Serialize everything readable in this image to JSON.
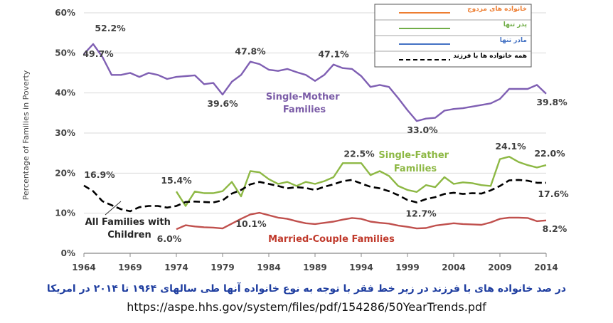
{
  "chart_data": {
    "type": "line",
    "ylabel": "Percentage of Families in Poverty",
    "xlim": [
      1964,
      2014
    ],
    "ylim": [
      0,
      60
    ],
    "x_ticks": [
      "1964",
      "1969",
      "1974",
      "1979",
      "1984",
      "1989",
      "1994",
      "1999",
      "2004",
      "2009",
      "2014"
    ],
    "y_ticks": [
      "0%",
      "10%",
      "20%",
      "30%",
      "40%",
      "50%",
      "60%"
    ],
    "grid": "horizontal",
    "legend_position": "top-right",
    "legend": [
      {
        "label": "خانواده های مزدوج",
        "color": "#ed7d31",
        "dash": "none"
      },
      {
        "label": "پدر تنها",
        "color": "#70ad47",
        "dash": "none"
      },
      {
        "label": "مادر تنها",
        "color": "#4472c4",
        "dash": "none"
      },
      {
        "label": "همه خانواده ها با فرزند",
        "color": "#000000",
        "dash": "6,4"
      }
    ],
    "series": [
      {
        "name": "Single-Mother Families",
        "color": "#7f5fb3",
        "dash": "none",
        "width": 2.4,
        "points": [
          [
            1964,
            49.7
          ],
          [
            1965,
            52.2
          ],
          [
            1966,
            49
          ],
          [
            1967,
            44.5
          ],
          [
            1968,
            44.5
          ],
          [
            1969,
            45
          ],
          [
            1970,
            44
          ],
          [
            1971,
            45
          ],
          [
            1972,
            44.5
          ],
          [
            1973,
            43.5
          ],
          [
            1974,
            44
          ],
          [
            1975,
            44.2
          ],
          [
            1976,
            44.4
          ],
          [
            1977,
            42.2
          ],
          [
            1978,
            42.5
          ],
          [
            1979,
            39.6
          ],
          [
            1980,
            42.8
          ],
          [
            1981,
            44.5
          ],
          [
            1982,
            47.8
          ],
          [
            1983,
            47.2
          ],
          [
            1984,
            45.8
          ],
          [
            1985,
            45.5
          ],
          [
            1986,
            46
          ],
          [
            1987,
            45.2
          ],
          [
            1988,
            44.5
          ],
          [
            1989,
            43
          ],
          [
            1990,
            44.5
          ],
          [
            1991,
            47.1
          ],
          [
            1992,
            46.2
          ],
          [
            1993,
            46
          ],
          [
            1994,
            44.2
          ],
          [
            1995,
            41.5
          ],
          [
            1996,
            42
          ],
          [
            1997,
            41.5
          ],
          [
            1998,
            38.7
          ],
          [
            1999,
            35.7
          ],
          [
            2000,
            33
          ],
          [
            2001,
            33.6
          ],
          [
            2002,
            33.8
          ],
          [
            2003,
            35.6
          ],
          [
            2004,
            36
          ],
          [
            2005,
            36.2
          ],
          [
            2006,
            36.6
          ],
          [
            2007,
            37
          ],
          [
            2008,
            37.4
          ],
          [
            2009,
            38.5
          ],
          [
            2010,
            41
          ],
          [
            2011,
            41
          ],
          [
            2012,
            41
          ],
          [
            2013,
            42
          ],
          [
            2014,
            39.8
          ]
        ]
      },
      {
        "name": "Single-Father Families",
        "color": "#8db844",
        "dash": "none",
        "width": 2.4,
        "points": [
          [
            1974,
            15.4
          ],
          [
            1975,
            11.8
          ],
          [
            1976,
            15.4
          ],
          [
            1977,
            15
          ],
          [
            1978,
            15
          ],
          [
            1979,
            15.5
          ],
          [
            1980,
            17.8
          ],
          [
            1981,
            14.2
          ],
          [
            1982,
            20.5
          ],
          [
            1983,
            20.2
          ],
          [
            1984,
            18.5
          ],
          [
            1985,
            17.3
          ],
          [
            1986,
            17.8
          ],
          [
            1987,
            16.8
          ],
          [
            1988,
            17.8
          ],
          [
            1989,
            17.3
          ],
          [
            1990,
            18
          ],
          [
            1991,
            19
          ],
          [
            1992,
            22.5
          ],
          [
            1993,
            22.5
          ],
          [
            1994,
            22.5
          ],
          [
            1995,
            19.5
          ],
          [
            1996,
            20.5
          ],
          [
            1997,
            19.3
          ],
          [
            1998,
            16.8
          ],
          [
            1999,
            15.8
          ],
          [
            2000,
            15.3
          ],
          [
            2001,
            17
          ],
          [
            2002,
            16.5
          ],
          [
            2003,
            19
          ],
          [
            2004,
            17.3
          ],
          [
            2005,
            17.7
          ],
          [
            2006,
            17.5
          ],
          [
            2007,
            17
          ],
          [
            2008,
            16.8
          ],
          [
            2009,
            23.5
          ],
          [
            2010,
            24.1
          ],
          [
            2011,
            22.8
          ],
          [
            2012,
            22
          ],
          [
            2013,
            21.4
          ],
          [
            2014,
            22
          ]
        ]
      },
      {
        "name": "All Families with Children",
        "color": "#000000",
        "dash": "9,5",
        "width": 2.6,
        "points": [
          [
            1964,
            16.9
          ],
          [
            1965,
            15.5
          ],
          [
            1966,
            13
          ],
          [
            1967,
            12
          ],
          [
            1968,
            11
          ],
          [
            1969,
            10.5
          ],
          [
            1970,
            11.5
          ],
          [
            1971,
            11.8
          ],
          [
            1972,
            11.8
          ],
          [
            1973,
            11.4
          ],
          [
            1974,
            11.8
          ],
          [
            1975,
            12.8
          ],
          [
            1976,
            12.9
          ],
          [
            1977,
            12.8
          ],
          [
            1978,
            12.7
          ],
          [
            1979,
            13.2
          ],
          [
            1980,
            14.9
          ],
          [
            1981,
            15.8
          ],
          [
            1982,
            17.2
          ],
          [
            1983,
            17.8
          ],
          [
            1984,
            17.3
          ],
          [
            1985,
            16.8
          ],
          [
            1986,
            16.2
          ],
          [
            1987,
            16.5
          ],
          [
            1988,
            16.3
          ],
          [
            1989,
            15.8
          ],
          [
            1990,
            16.6
          ],
          [
            1991,
            17.2
          ],
          [
            1992,
            18
          ],
          [
            1993,
            18.3
          ],
          [
            1994,
            17.4
          ],
          [
            1995,
            16.6
          ],
          [
            1996,
            16.2
          ],
          [
            1997,
            15.5
          ],
          [
            1998,
            14.5
          ],
          [
            1999,
            13.3
          ],
          [
            2000,
            12.7
          ],
          [
            2001,
            13.5
          ],
          [
            2002,
            14
          ],
          [
            2003,
            14.8
          ],
          [
            2004,
            15.1
          ],
          [
            2005,
            14.8
          ],
          [
            2006,
            15
          ],
          [
            2007,
            14.9
          ],
          [
            2008,
            15.7
          ],
          [
            2009,
            16.8
          ],
          [
            2010,
            18.2
          ],
          [
            2011,
            18.3
          ],
          [
            2012,
            18.1
          ],
          [
            2013,
            17.6
          ],
          [
            2014,
            17.6
          ]
        ]
      },
      {
        "name": "Married-Couple Families",
        "color": "#c0504d",
        "dash": "none",
        "width": 2.4,
        "points": [
          [
            1974,
            6
          ],
          [
            1975,
            7
          ],
          [
            1976,
            6.7
          ],
          [
            1977,
            6.5
          ],
          [
            1978,
            6.4
          ],
          [
            1979,
            6.2
          ],
          [
            1980,
            7.4
          ],
          [
            1981,
            8.6
          ],
          [
            1982,
            9.7
          ],
          [
            1983,
            10.1
          ],
          [
            1984,
            9.5
          ],
          [
            1985,
            8.9
          ],
          [
            1986,
            8.6
          ],
          [
            1987,
            8
          ],
          [
            1988,
            7.5
          ],
          [
            1989,
            7.3
          ],
          [
            1990,
            7.6
          ],
          [
            1991,
            7.9
          ],
          [
            1992,
            8.4
          ],
          [
            1993,
            8.8
          ],
          [
            1994,
            8.6
          ],
          [
            1995,
            7.9
          ],
          [
            1996,
            7.6
          ],
          [
            1997,
            7.4
          ],
          [
            1998,
            6.9
          ],
          [
            1999,
            6.6
          ],
          [
            2000,
            6.2
          ],
          [
            2001,
            6.3
          ],
          [
            2002,
            6.9
          ],
          [
            2003,
            7.2
          ],
          [
            2004,
            7.5
          ],
          [
            2005,
            7.3
          ],
          [
            2006,
            7.2
          ],
          [
            2007,
            7.1
          ],
          [
            2008,
            7.7
          ],
          [
            2009,
            8.6
          ],
          [
            2010,
            8.9
          ],
          [
            2011,
            8.9
          ],
          [
            2012,
            8.8
          ],
          [
            2013,
            8
          ],
          [
            2014,
            8.2
          ]
        ]
      }
    ],
    "series_labels": {
      "single_mother": [
        "Single-Mother",
        "Families"
      ],
      "single_father": [
        "Single-Father",
        "Families"
      ],
      "all_families": [
        "All Families with",
        "Children"
      ],
      "married_couple": [
        "Married-Couple Families"
      ]
    },
    "annotations": [
      {
        "text": "52.2%",
        "x": 1965,
        "y": 52.2
      },
      {
        "text": "49.7%",
        "x": 1964,
        "y": 49.7
      },
      {
        "text": "47.8%",
        "x": 1982,
        "y": 47.8
      },
      {
        "text": "47.1%",
        "x": 1991,
        "y": 47.1
      },
      {
        "text": "39.6%",
        "x": 1979,
        "y": 39.6
      },
      {
        "text": "39.8%",
        "x": 2014,
        "y": 39.8
      },
      {
        "text": "33.0%",
        "x": 2000,
        "y": 33.0
      },
      {
        "text": "22.5%",
        "x": 1993,
        "y": 22.5
      },
      {
        "text": "24.1%",
        "x": 2010,
        "y": 24.1
      },
      {
        "text": "22.0%",
        "x": 2014,
        "y": 22.0
      },
      {
        "text": "16.9%",
        "x": 1964,
        "y": 16.9
      },
      {
        "text": "15.4%",
        "x": 1974,
        "y": 15.4
      },
      {
        "text": "17.6%",
        "x": 2014,
        "y": 17.6
      },
      {
        "text": "12.7%",
        "x": 2000,
        "y": 12.7
      },
      {
        "text": "10.1%",
        "x": 1983,
        "y": 10.1
      },
      {
        "text": "6.0%",
        "x": 1974,
        "y": 6.0
      },
      {
        "text": "8.2%",
        "x": 2014,
        "y": 8.2
      }
    ]
  },
  "caption": "در صد خانواده های با فرزند در زیر خط فقر با توجه به نوع خانواده آنها طی سالهای ۱۹۶۴ تا ۲۰۱۴ در امریکا",
  "source_url": "https://aspe.hhs.gov/system/files/pdf/154286/50YearTrends.pdf"
}
